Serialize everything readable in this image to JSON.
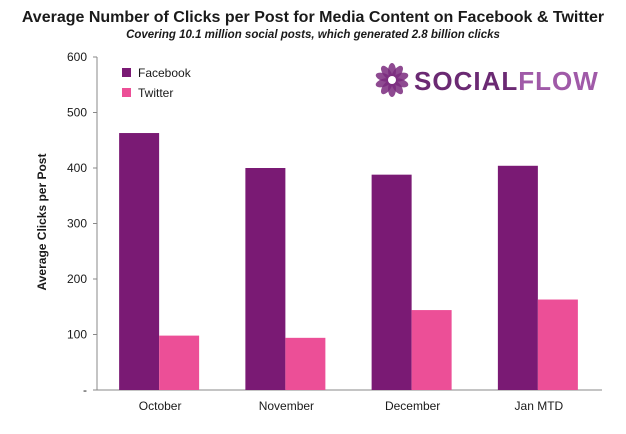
{
  "chart_data": {
    "type": "bar",
    "title": "Average Number of Clicks per Post for Media Content on Facebook & Twitter",
    "subtitle": "Covering 10.1 million social posts, which generated 2.8 billion clicks",
    "ylabel": "Average Clicks per Post",
    "categories": [
      "October",
      "November",
      "December",
      "Jan MTD"
    ],
    "series": [
      {
        "name": "Facebook",
        "color": "#7a1a74",
        "values": [
          463,
          400,
          388,
          404
        ]
      },
      {
        "name": "Twitter",
        "color": "#ec4f97",
        "values": [
          98,
          94,
          144,
          163
        ]
      }
    ],
    "ylim": [
      0,
      600
    ],
    "yticks": [
      {
        "value": 0,
        "label": "-"
      },
      {
        "value": 100,
        "label": "100"
      },
      {
        "value": 200,
        "label": "200"
      },
      {
        "value": 300,
        "label": "300"
      },
      {
        "value": 400,
        "label": "400"
      },
      {
        "value": 500,
        "label": "500"
      },
      {
        "value": 600,
        "label": "600"
      }
    ],
    "legend_position": "top-left",
    "grid": false
  },
  "logo": {
    "part1": "SOCIAL",
    "part2": "FLOW",
    "color1": "#6b2a73",
    "color2": "#a05aa8",
    "icon": "flower-logo-icon"
  }
}
